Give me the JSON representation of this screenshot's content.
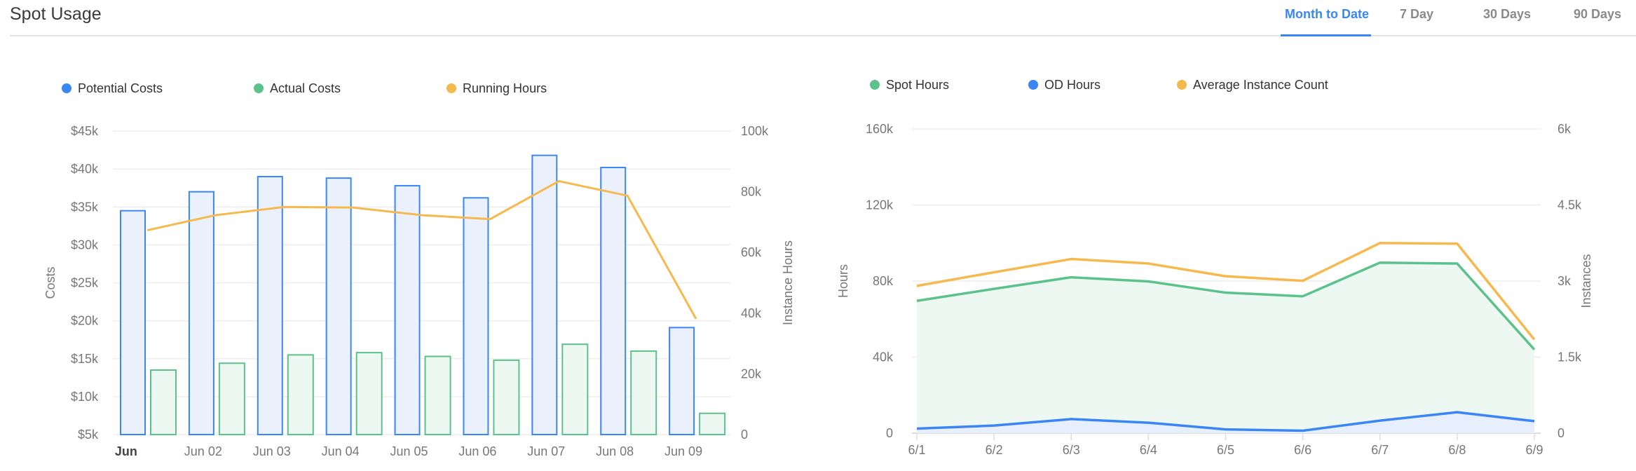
{
  "header": {
    "title": "Spot Usage",
    "tabs": [
      {
        "label": "Month to Date",
        "active": true
      },
      {
        "label": "7 Day",
        "active": false
      },
      {
        "label": "30 Days",
        "active": false
      },
      {
        "label": "90 Days",
        "active": false
      }
    ]
  },
  "colors": {
    "blue": "#3b86f5",
    "green": "#5cc28c",
    "orange": "#f5b94e",
    "accent": "#3b86f5"
  },
  "chart_data": [
    {
      "type": "bar",
      "categories": [
        "Jun",
        "Jun 02",
        "Jun 03",
        "Jun 04",
        "Jun 05",
        "Jun 06",
        "Jun 07",
        "Jun 08",
        "Jun 09"
      ],
      "ylabel": "Costs",
      "y2label": "Instance Hours",
      "ylim": [
        5000,
        45000
      ],
      "y2lim": [
        0,
        100000
      ],
      "yticks": [
        "$5k",
        "$10k",
        "$15k",
        "$20k",
        "$25k",
        "$30k",
        "$35k",
        "$40k",
        "$45k"
      ],
      "y2ticks": [
        "0",
        "20k",
        "40k",
        "60k",
        "80k",
        "100k"
      ],
      "legend_position": "top-left",
      "grid": true,
      "series": [
        {
          "name": "Potential Costs",
          "type": "bar",
          "axis": "left",
          "color": "#3b86f5",
          "values": [
            34500,
            37000,
            39000,
            38800,
            37800,
            36200,
            41800,
            40200,
            19100
          ]
        },
        {
          "name": "Actual Costs",
          "type": "bar",
          "axis": "left",
          "color": "#5cc28c",
          "values": [
            13500,
            14400,
            15500,
            15800,
            15300,
            14800,
            16900,
            16000,
            7800
          ]
        },
        {
          "name": "Running Hours",
          "type": "line",
          "axis": "right",
          "color": "#f5b94e",
          "values": [
            67300,
            72300,
            75000,
            74800,
            72300,
            71000,
            83500,
            78700,
            38100
          ]
        }
      ]
    },
    {
      "type": "area",
      "categories": [
        "6/1",
        "6/2",
        "6/3",
        "6/4",
        "6/5",
        "6/6",
        "6/7",
        "6/8",
        "6/9"
      ],
      "ylabel": "Hours",
      "y2label": "Instances",
      "ylim": [
        0,
        160000
      ],
      "y2lim": [
        0,
        6000
      ],
      "yticks": [
        "0",
        "40k",
        "80k",
        "120k",
        "160k"
      ],
      "y2ticks": [
        "0",
        "1.5k",
        "3k",
        "4.5k",
        "6k"
      ],
      "legend_position": "top-left",
      "grid": true,
      "series": [
        {
          "name": "Spot Hours",
          "type": "area",
          "axis": "left",
          "color": "#5cc28c",
          "values": [
            69600,
            75900,
            82000,
            79800,
            73900,
            72000,
            89700,
            89200,
            44000
          ]
        },
        {
          "name": "OD Hours",
          "type": "area",
          "axis": "left",
          "color": "#3b86f5",
          "values": [
            2400,
            4000,
            7400,
            5500,
            2000,
            1300,
            6600,
            11000,
            6300
          ]
        },
        {
          "name": "Average Instance Count",
          "type": "line",
          "axis": "right",
          "color": "#f5b94e",
          "values": [
            2905,
            3173,
            3435,
            3345,
            3095,
            3006,
            3750,
            3738,
            1845
          ]
        }
      ]
    }
  ]
}
